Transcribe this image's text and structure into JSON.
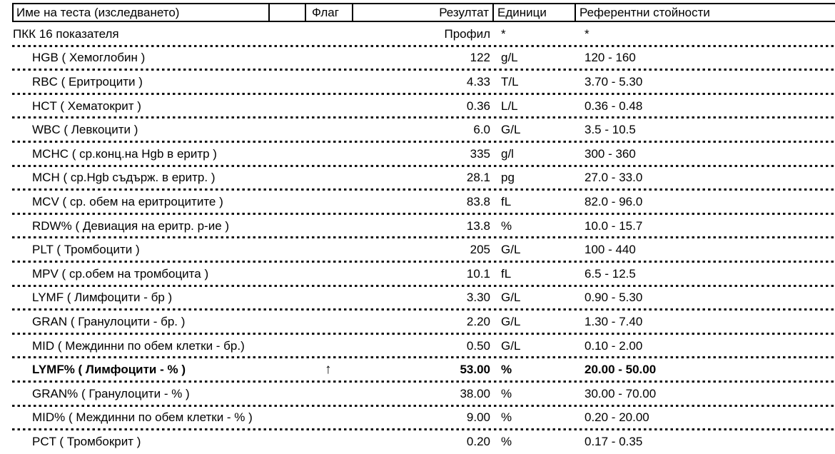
{
  "table": {
    "headers": {
      "name": "Име на теста (изследването)",
      "flag": "Флаг",
      "result": "Резултат",
      "units": "Единици",
      "reference": "Референтни стойности"
    },
    "rows": [
      {
        "name": "ПКК 16 показателя",
        "flag": "",
        "result": "Профил",
        "units": "*",
        "reference": "*",
        "abnormal": false,
        "indent": false
      },
      {
        "name": "HGB ( Хемоглобин )",
        "flag": "",
        "result": "122",
        "units": "g/L",
        "reference": "120 - 160",
        "abnormal": false,
        "indent": true
      },
      {
        "name": "RBC ( Еритроцити )",
        "flag": "",
        "result": "4.33",
        "units": "T/L",
        "reference": "3.70 - 5.30",
        "abnormal": false,
        "indent": true
      },
      {
        "name": "HCT ( Хематокрит )",
        "flag": "",
        "result": "0.36",
        "units": "L/L",
        "reference": "0.36 - 0.48",
        "abnormal": false,
        "indent": true
      },
      {
        "name": "WBC ( Левкоцити )",
        "flag": "",
        "result": "6.0",
        "units": "G/L",
        "reference": "3.5 - 10.5",
        "abnormal": false,
        "indent": true
      },
      {
        "name": "MCHC ( ср.конц.на Hgb в еритр )",
        "flag": "",
        "result": "335",
        "units": "g/l",
        "reference": "300 - 360",
        "abnormal": false,
        "indent": true
      },
      {
        "name": "MCH ( ср.Hgb съдърж. в еритр. )",
        "flag": "",
        "result": "28.1",
        "units": "pg",
        "reference": "27.0 - 33.0",
        "abnormal": false,
        "indent": true
      },
      {
        "name": "MCV ( ср. обем на еритроцитите )",
        "flag": "",
        "result": "83.8",
        "units": "fL",
        "reference": "82.0 - 96.0",
        "abnormal": false,
        "indent": true
      },
      {
        "name": "RDW% ( Девиация на еритр. р-ие )",
        "flag": "",
        "result": "13.8",
        "units": "%",
        "reference": "10.0 - 15.7",
        "abnormal": false,
        "indent": true
      },
      {
        "name": "PLT ( Тромбоцити )",
        "flag": "",
        "result": "205",
        "units": "G/L",
        "reference": "100 - 440",
        "abnormal": false,
        "indent": true
      },
      {
        "name": "MPV ( ср.обем на тромбоцита )",
        "flag": "",
        "result": "10.1",
        "units": "fL",
        "reference": "6.5 - 12.5",
        "abnormal": false,
        "indent": true
      },
      {
        "name": "LYMF ( Лимфоцити - бр )",
        "flag": "",
        "result": "3.30",
        "units": "G/L",
        "reference": "0.90 - 5.30",
        "abnormal": false,
        "indent": true
      },
      {
        "name": "GRAN ( Гранулоцити - бр. )",
        "flag": "",
        "result": "2.20",
        "units": "G/L",
        "reference": "1.30 - 7.40",
        "abnormal": false,
        "indent": true
      },
      {
        "name": "MID ( Междинни по обем клетки - бр.)",
        "flag": "",
        "result": "0.50",
        "units": "G/L",
        "reference": "0.10 - 2.00",
        "abnormal": false,
        "indent": true
      },
      {
        "name": "LYMF% ( Лимфоцити - % )",
        "flag": "↑",
        "result": "53.00",
        "units": "%",
        "reference": "20.00 - 50.00",
        "abnormal": true,
        "indent": true
      },
      {
        "name": "GRAN% ( Гранулоцити - % )",
        "flag": "",
        "result": "38.00",
        "units": "%",
        "reference": "30.00 - 70.00",
        "abnormal": false,
        "indent": true
      },
      {
        "name": "MID% ( Междинни по обем клетки - % )",
        "flag": "",
        "result": "9.00",
        "units": "%",
        "reference": "0.20 - 20.00",
        "abnormal": false,
        "indent": true
      },
      {
        "name": "PCT ( Тромбокрит )",
        "flag": "",
        "result": "0.20",
        "units": "%",
        "reference": "0.17 - 0.35",
        "abnormal": false,
        "indent": true
      }
    ]
  },
  "colors": {
    "text": "#000000",
    "background": "#ffffff",
    "border": "#000000"
  }
}
